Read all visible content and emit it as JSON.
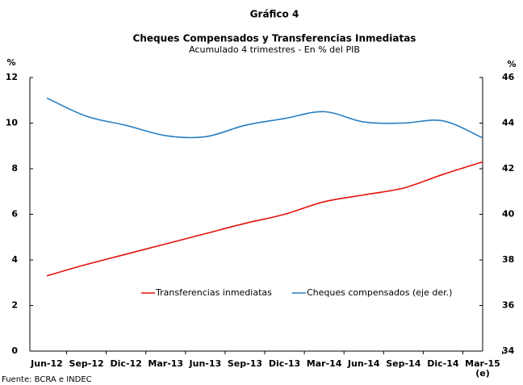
{
  "chart_data": {
    "type": "line",
    "title": "Gráfico 4",
    "subtitle": "Cheques Compensados y Transferencias Inmediatas",
    "note": "Acumulado 4 trimestres - En % del PIB",
    "y_label": "%",
    "y2_label": "%",
    "source": "Fuente: BCRA e INDEC",
    "categories": [
      "Jun-12",
      "Sep-12",
      "Dic-12",
      "Mar-13",
      "Jun-13",
      "Sep-13",
      "Dic-13",
      "Mar-14",
      "Jun-14",
      "Sep-14",
      "Dic-14",
      "Mar-15\n(e)"
    ],
    "series": [
      {
        "name": "Transferencias inmediatas",
        "color": "#e3120b",
        "values": [
          3.3,
          3.8,
          4.25,
          4.7,
          5.15,
          5.6,
          6.0,
          6.55,
          6.85,
          7.15,
          7.75,
          8.3
        ]
      },
      {
        "name": "Cheques compensados (eje der.)",
        "color": "#2a7fc1",
        "axis": "y2",
        "values": [
          45.1,
          44.3,
          43.9,
          43.45,
          43.4,
          43.9,
          44.2,
          44.5,
          44.05,
          44.0,
          44.1,
          43.35
        ]
      }
    ],
    "ylim": [
      0,
      12
    ],
    "yticks": [
      0,
      2,
      4,
      6,
      8,
      10,
      12
    ],
    "y2lim": [
      34,
      46
    ],
    "y2ticks": [
      34,
      36,
      38,
      40,
      42,
      44,
      46
    ],
    "legend": "center"
  }
}
